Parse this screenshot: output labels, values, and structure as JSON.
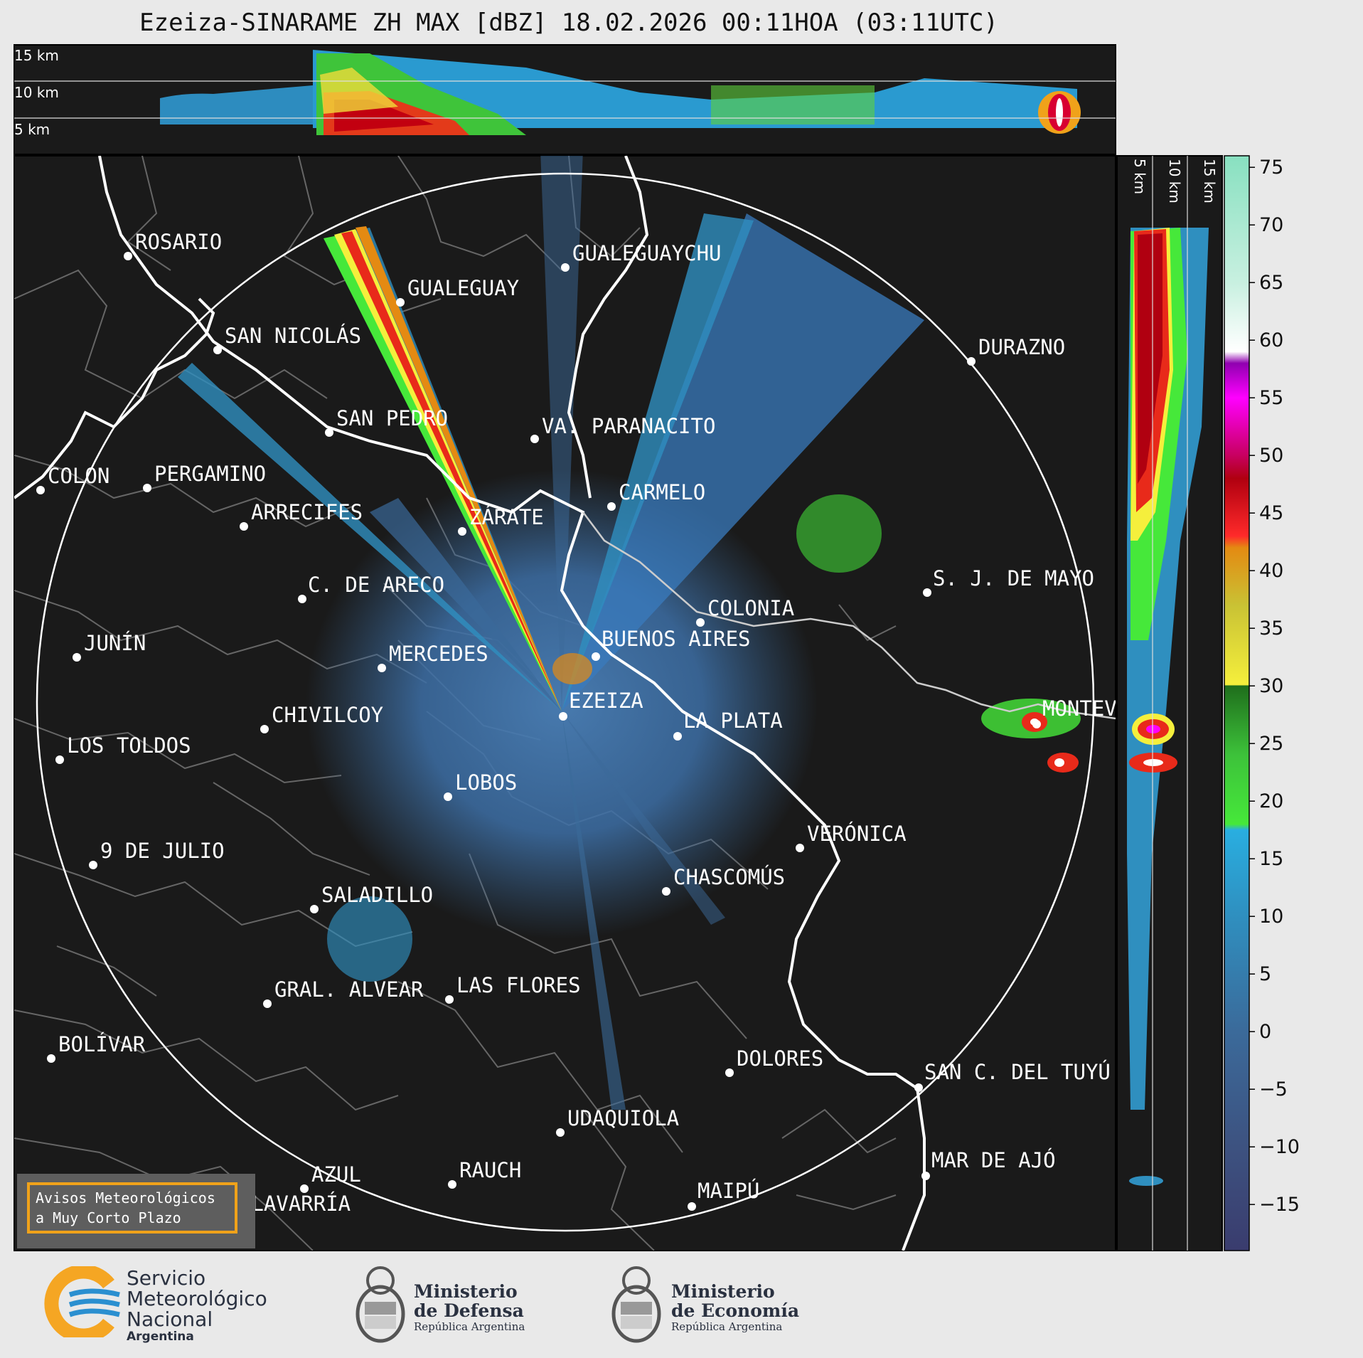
{
  "title": "Ezeiza-SINARAME ZH MAX [dBZ] 18.02.2026 00:11HOA (03:11UTC)",
  "top_panel": {
    "altitude_labels": [
      "15 km",
      "10 km",
      "5 km"
    ]
  },
  "side_panel": {
    "altitude_labels": [
      "5 km",
      "10 km",
      "15 km"
    ]
  },
  "colorbar": {
    "ticks": [
      "75",
      "70",
      "65",
      "60",
      "55",
      "50",
      "45",
      "40",
      "35",
      "30",
      "25",
      "20",
      "15",
      "10",
      "5",
      "0",
      "−5",
      "−10",
      "−15"
    ],
    "range": [
      -19,
      76
    ],
    "stops": [
      {
        "v": -19,
        "c": "#3a3c6e"
      },
      {
        "v": -10,
        "c": "#3d5280"
      },
      {
        "v": 0,
        "c": "#3b6a9a"
      },
      {
        "v": 10,
        "c": "#2f8fbf"
      },
      {
        "v": 17.5,
        "c": "#29aee0"
      },
      {
        "v": 18,
        "c": "#46e83a"
      },
      {
        "v": 24,
        "c": "#3dc23a"
      },
      {
        "v": 30,
        "c": "#1f6e1c"
      },
      {
        "v": 30.1,
        "c": "#f5ef3c"
      },
      {
        "v": 37,
        "c": "#c9c234"
      },
      {
        "v": 42,
        "c": "#e48a12"
      },
      {
        "v": 43,
        "c": "#ff2a2a"
      },
      {
        "v": 48,
        "c": "#b00010"
      },
      {
        "v": 50,
        "c": "#c80060"
      },
      {
        "v": 55,
        "c": "#ff00ff"
      },
      {
        "v": 58,
        "c": "#9000b0"
      },
      {
        "v": 59,
        "c": "#ffffff"
      },
      {
        "v": 65,
        "c": "#c8f0e0"
      },
      {
        "v": 76,
        "c": "#88e0c0"
      }
    ]
  },
  "cities": [
    {
      "name": "ROSARIO"
    },
    {
      "name": "GUALEGUAYCHU"
    },
    {
      "name": "GUALEGUAY"
    },
    {
      "name": "SAN NICOLÁS"
    },
    {
      "name": "DURAZNO"
    },
    {
      "name": "SAN PEDRO"
    },
    {
      "name": "VA. PARANACITO"
    },
    {
      "name": "COLON"
    },
    {
      "name": "PERGAMINO"
    },
    {
      "name": "CARMELO"
    },
    {
      "name": "ARRECIFES"
    },
    {
      "name": "ZÁRATE"
    },
    {
      "name": "S. J. DE MAYO"
    },
    {
      "name": "C. DE ARECO"
    },
    {
      "name": "COLONIA"
    },
    {
      "name": "JUNÍN"
    },
    {
      "name": "BUENOS AIRES"
    },
    {
      "name": "MERCEDES"
    },
    {
      "name": "EZEIZA"
    },
    {
      "name": "MONTEV"
    },
    {
      "name": "CHIVILCOY"
    },
    {
      "name": "LA PLATA"
    },
    {
      "name": "LOS TOLDOS"
    },
    {
      "name": "LOBOS"
    },
    {
      "name": "VERÓNICA"
    },
    {
      "name": "9 DE JULIO"
    },
    {
      "name": "CHASCOMÚS"
    },
    {
      "name": "SALADILLO"
    },
    {
      "name": "GRAL. ALVEAR"
    },
    {
      "name": "LAS FLORES"
    },
    {
      "name": "BOLÍVAR"
    },
    {
      "name": "DOLORES"
    },
    {
      "name": "SAN C. DEL TUYÚ"
    },
    {
      "name": "UDAQUIOLA"
    },
    {
      "name": "MAR DE AJÓ"
    },
    {
      "name": "AZUL"
    },
    {
      "name": "RAUCH"
    },
    {
      "name": "OLAVARRÍA"
    },
    {
      "name": "MAIPÚ"
    }
  ],
  "warning_box": {
    "line1": "Avisos Meteorológicos",
    "line2": "a Muy Corto Plazo"
  },
  "logos": {
    "smn": {
      "line1": "Servicio",
      "line2": "Meteorológico",
      "line3": "Nacional",
      "line4": "Argentina"
    },
    "defensa": {
      "line1": "Ministerio",
      "line2": "de Defensa",
      "line3": "República Argentina"
    },
    "economia": {
      "line1": "Ministerio",
      "line2": "de Economía",
      "line3": "República Argentina"
    }
  },
  "colors": {
    "panel_bg": "#1a1a1a",
    "smn_orange": "#f5a623",
    "smn_blue": "#2a8fd0"
  }
}
